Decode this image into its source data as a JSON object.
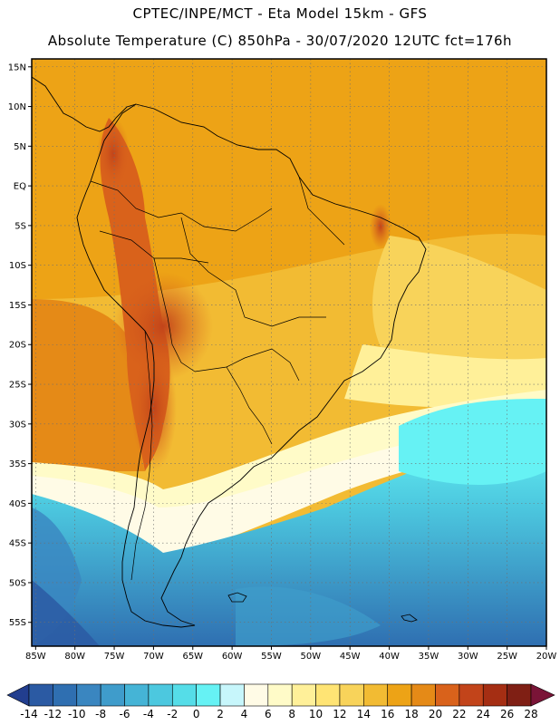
{
  "header": {
    "line1": "CPTEC/INPE/MCT -  Eta Model 15km - GFS",
    "line2": "Absolute Temperature (C) 850hPa - 30/07/2020 12UTC fct=176h"
  },
  "map": {
    "lat_labels": [
      "15N",
      "10N",
      "5N",
      "EQ",
      "5S",
      "10S",
      "15S",
      "20S",
      "25S",
      "30S",
      "35S",
      "40S",
      "45S",
      "50S",
      "55S"
    ],
    "lon_labels": [
      "85W",
      "80W",
      "75W",
      "70W",
      "65W",
      "60W",
      "55W",
      "50W",
      "45W",
      "40W",
      "35W",
      "30W",
      "25W",
      "20W"
    ],
    "lat_values": [
      15,
      10,
      5,
      0,
      -5,
      -10,
      -15,
      -20,
      -25,
      -30,
      -35,
      -40,
      -45,
      -50,
      -55
    ],
    "lon_values": [
      -85,
      -80,
      -75,
      -70,
      -65,
      -60,
      -55,
      -50,
      -45,
      -40,
      -35,
      -30,
      -25,
      -20
    ],
    "extent": {
      "lon_min": -85.5,
      "lon_max": -20,
      "lat_min": -58,
      "lat_max": 16
    }
  },
  "colorbar": {
    "labels": [
      "-14",
      "-12",
      "-10",
      "-8",
      "-6",
      "-4",
      "-2",
      "0",
      "2",
      "4",
      "6",
      "8",
      "10",
      "12",
      "14",
      "16",
      "18",
      "20",
      "22",
      "24",
      "26",
      "28"
    ],
    "colors": [
      "#223e8f",
      "#2b5aa3",
      "#2f6fb1",
      "#3a86c0",
      "#3f9ccb",
      "#45b4d6",
      "#4cc8df",
      "#55dde8",
      "#66f2f4",
      "#c7f6fb",
      "#fffbe6",
      "#fffbc8",
      "#fff099",
      "#ffe474",
      "#f8d35a",
      "#f2bb33",
      "#eda316",
      "#e58a17",
      "#d9621b",
      "#c2441a",
      "#a52e13",
      "#7f1f14",
      "#7a1437"
    ]
  }
}
